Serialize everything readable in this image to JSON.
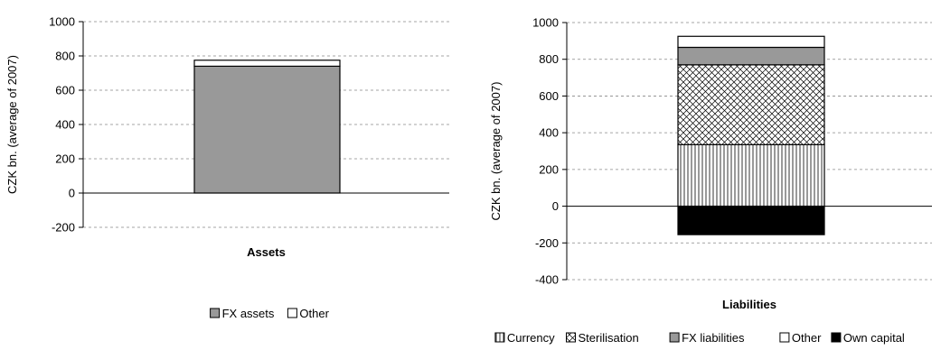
{
  "chart_data": [
    {
      "type": "bar",
      "stacked": true,
      "categories": [
        "Assets"
      ],
      "ylabel": "CZK bn. (average of 2007)",
      "ylim": [
        -200,
        1000
      ],
      "yticks": [
        -200,
        0,
        200,
        400,
        600,
        800,
        1000
      ],
      "grid": true,
      "legend_position": "bottom",
      "series": [
        {
          "name": "FX assets",
          "values": [
            740
          ],
          "color": "#999999",
          "pattern": "solid"
        },
        {
          "name": "Other",
          "values": [
            35
          ],
          "color": "#ffffff",
          "pattern": "solid"
        }
      ]
    },
    {
      "type": "bar",
      "stacked": true,
      "categories": [
        "Liabilities"
      ],
      "ylabel": "CZK bn. (average of 2007)",
      "ylim": [
        -400,
        1000
      ],
      "yticks": [
        -400,
        -200,
        0,
        200,
        400,
        600,
        800,
        1000
      ],
      "grid": true,
      "legend_position": "bottom",
      "series": [
        {
          "name": "Currency",
          "values": [
            335
          ],
          "color": "#ffffff",
          "pattern": "vertical-lines"
        },
        {
          "name": "Sterilisation",
          "values": [
            435
          ],
          "color": "#ffffff",
          "pattern": "crosshatch"
        },
        {
          "name": "FX liabilities",
          "values": [
            95
          ],
          "color": "#999999",
          "pattern": "solid"
        },
        {
          "name": "Other",
          "values": [
            60
          ],
          "color": "#ffffff",
          "pattern": "solid"
        },
        {
          "name": "Own capital",
          "values": [
            -155
          ],
          "color": "#000000",
          "pattern": "solid"
        }
      ]
    }
  ]
}
